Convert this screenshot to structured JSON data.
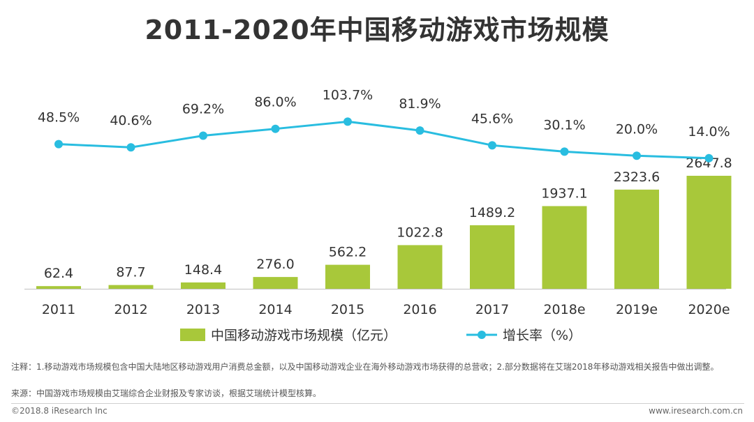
{
  "title": "2011-2020年中国移动游戏市场规模",
  "chart_data": {
    "type": "bar+line",
    "categories": [
      "2011",
      "2012",
      "2013",
      "2014",
      "2015",
      "2016",
      "2017",
      "2018e",
      "2019e",
      "2020e"
    ],
    "series": [
      {
        "name": "中国移动游戏市场规模（亿元）",
        "type": "bar",
        "values": [
          62.4,
          87.7,
          148.4,
          276.0,
          562.2,
          1022.8,
          1489.2,
          1937.1,
          2323.6,
          2647.8
        ],
        "labels": [
          "62.4",
          "87.7",
          "148.4",
          "276.0",
          "562.2",
          "1022.8",
          "1489.2",
          "1937.1",
          "2323.6",
          "2647.8"
        ],
        "color": "#a8c83a"
      },
      {
        "name": "增长率（%）",
        "type": "line",
        "values": [
          48.5,
          40.6,
          69.2,
          86.0,
          103.7,
          81.9,
          45.6,
          30.1,
          20.0,
          14.0
        ],
        "labels": [
          "48.5%",
          "40.6%",
          "69.2%",
          "86.0%",
          "103.7%",
          "81.9%",
          "45.6%",
          "30.1%",
          "20.0%",
          "14.0%"
        ],
        "color": "#29bde0"
      }
    ],
    "legend_position": "bottom",
    "grid": false
  },
  "notes": {
    "note1": "注释：1.移动游戏市场规模包含中国大陆地区移动游戏用户消费总金额，以及中国移动游戏企业在海外移动游戏市场获得的总营收；2.部分数据将在艾瑞2018年移动游戏相关报告中做出调整。",
    "note2": "来源：中国游戏市场规模由艾瑞综合企业财报及专家访谈，根据艾瑞统计模型核算。"
  },
  "footer": {
    "copyright": "©2018.8 iResearch Inc",
    "website": "www.iresearch.com.cn"
  }
}
